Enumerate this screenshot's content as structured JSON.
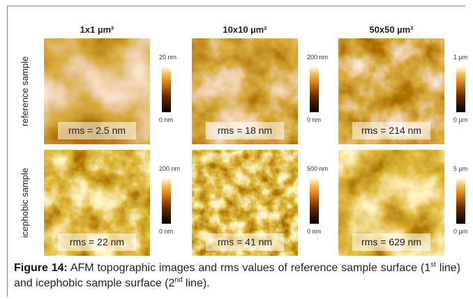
{
  "columns": [
    "1x1 µm²",
    "10x10 µm²",
    "50x50 µm²"
  ],
  "rows": [
    {
      "label": "reference sample",
      "panels": [
        {
          "rms": "rms = 2.5 nm",
          "scale_max": "20 nm",
          "scale_min": "0 nm"
        },
        {
          "rms": "rms = 18 nm",
          "scale_max": "200 nm",
          "scale_min": "0 nm"
        },
        {
          "rms": "rms = 214 nm",
          "scale_max": "1 µm",
          "scale_min": "0 µm"
        }
      ]
    },
    {
      "label": "icephobic sample",
      "panels": [
        {
          "rms": "rms = 22 nm",
          "scale_max": "200 nm",
          "scale_min": "0 nm"
        },
        {
          "rms": "rms = 41 nm",
          "scale_max": "500 nm",
          "scale_min": "0 nm"
        },
        {
          "rms": "rms = 629 nm",
          "scale_max": "5 µm",
          "scale_min": "0 µm"
        }
      ]
    }
  ],
  "caption": {
    "label": "Figure 14:",
    "parts": [
      "AFM topographic images and rms values of reference sample surface (1",
      "st",
      " line) and icephobic sample surface (2",
      "nd",
      " line)."
    ]
  }
}
